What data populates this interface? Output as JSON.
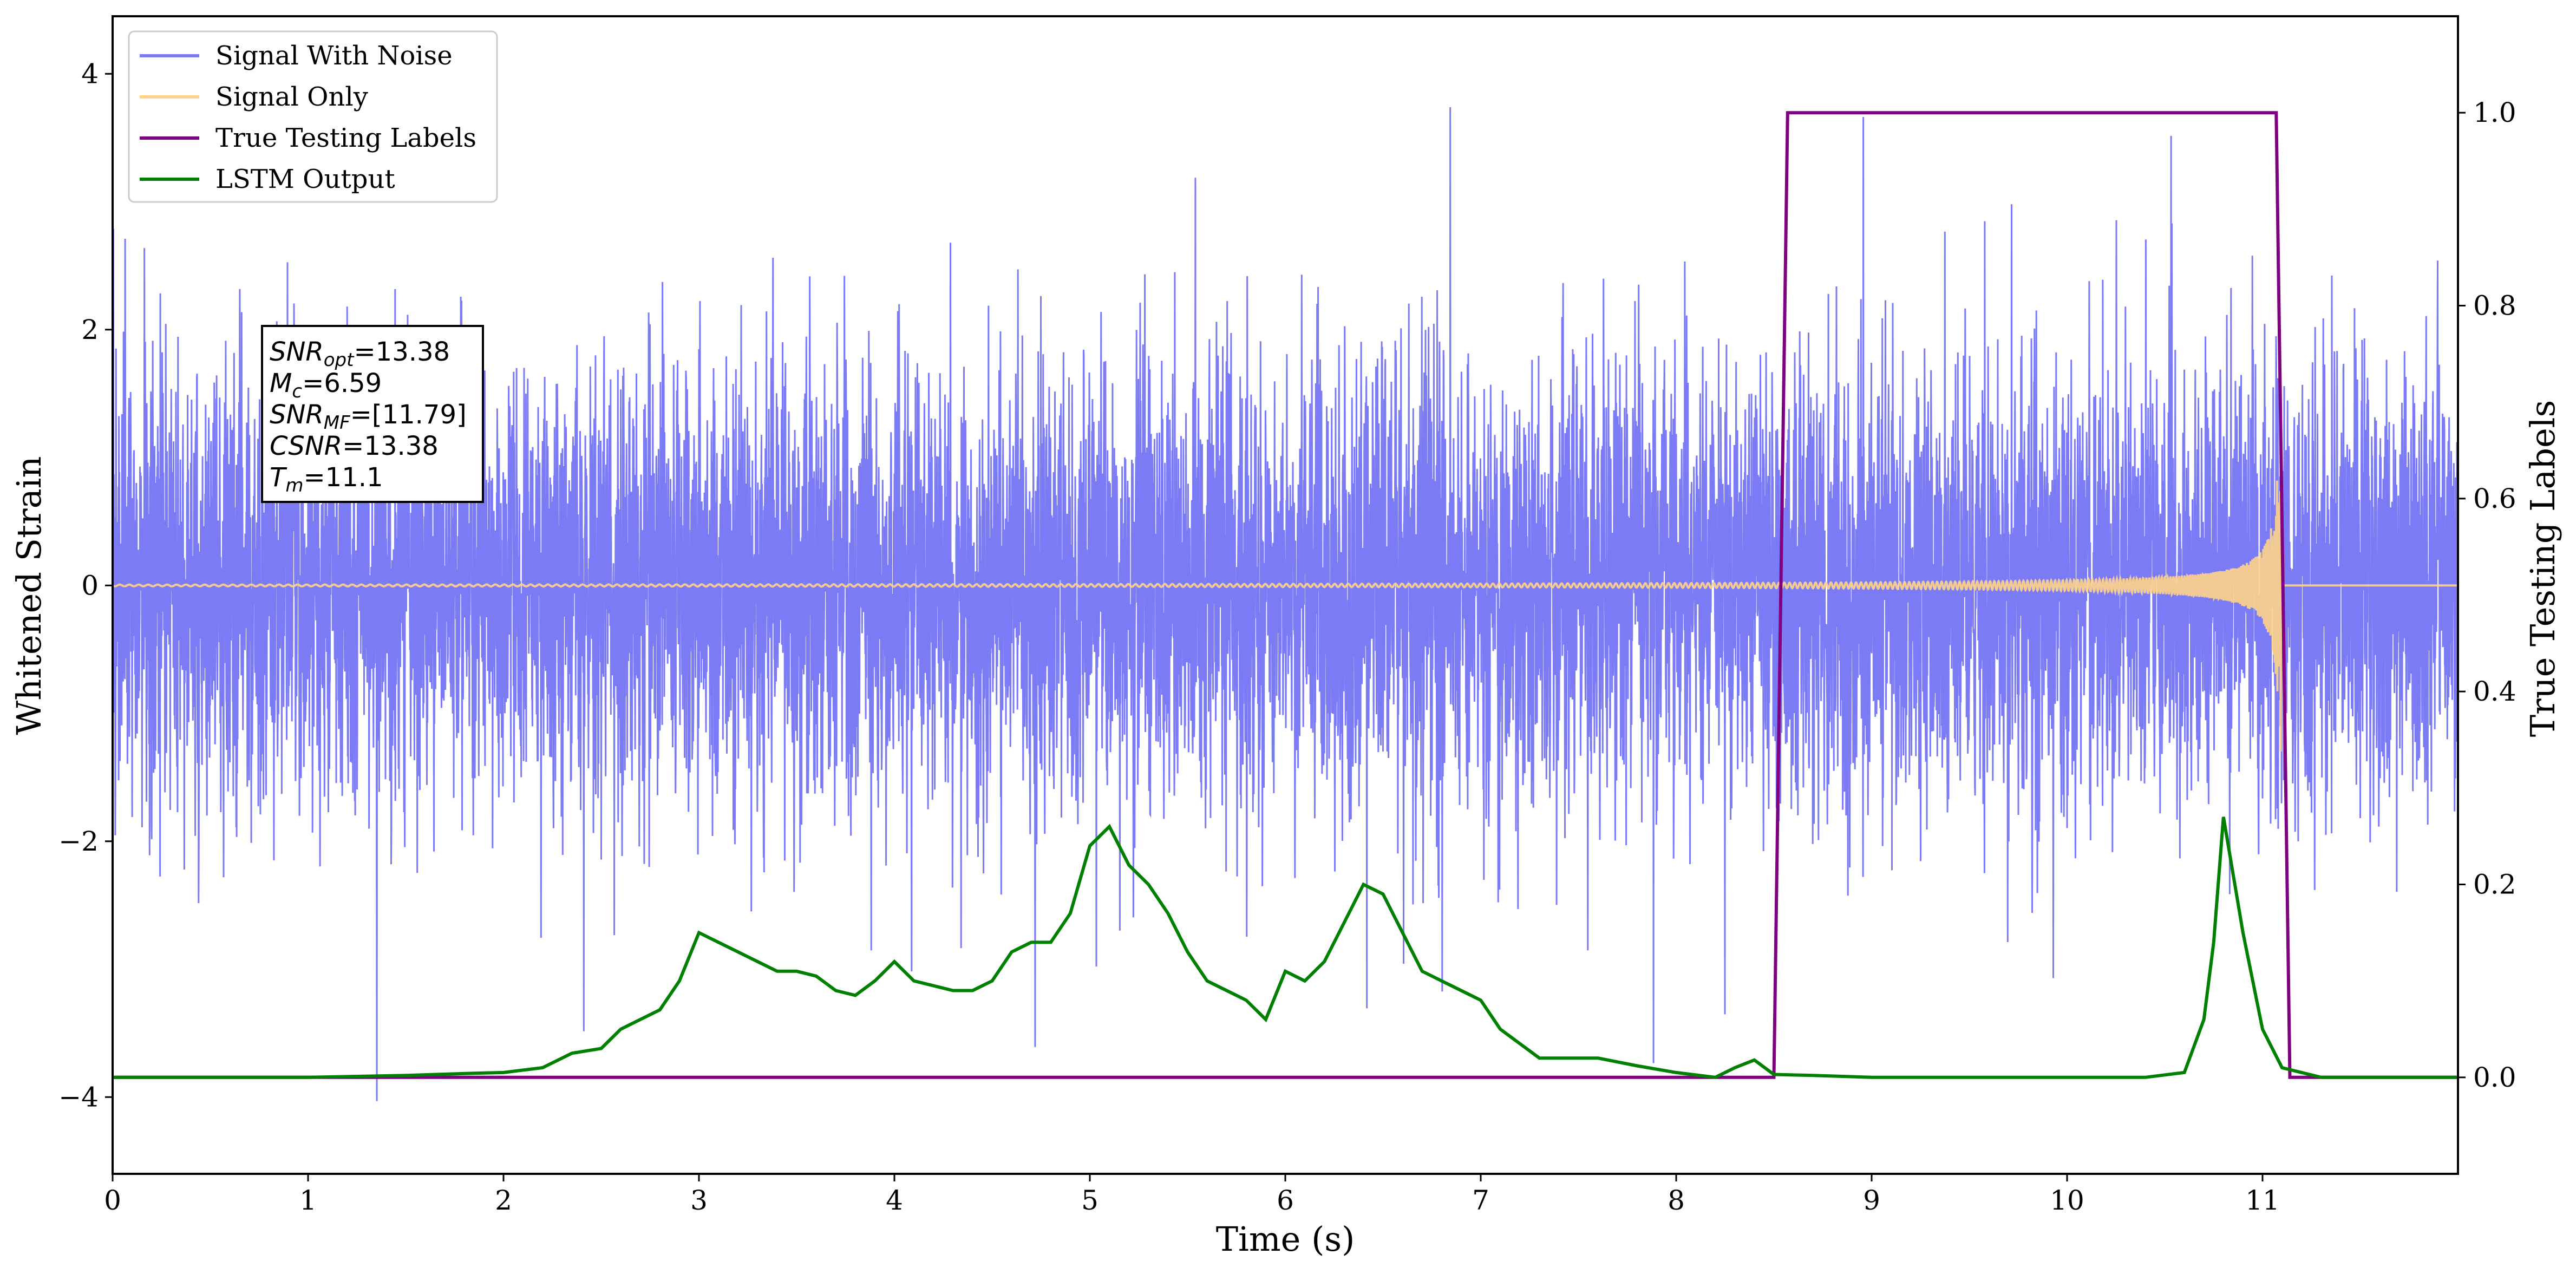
{
  "chart_data": {
    "type": "line",
    "xlabel": "Time (s)",
    "ylabel": "Whitened Strain",
    "y2label": "True Testing Labels",
    "xlim": [
      0,
      12
    ],
    "ylim": [
      -4.6,
      4.45
    ],
    "y2lim": [
      -0.1,
      1.1
    ],
    "xticks": [
      "0",
      "1",
      "2",
      "3",
      "4",
      "5",
      "6",
      "7",
      "8",
      "9",
      "10",
      "11"
    ],
    "yticks": [
      "−4",
      "−2",
      "0",
      "2",
      "4"
    ],
    "y2ticks": [
      "0.0",
      "0.2",
      "0.4",
      "0.6",
      "0.8",
      "1.0"
    ],
    "legend_position": "top-left",
    "series": [
      {
        "name": "Signal With Noise",
        "color": "#7b7bf5",
        "kind": "noise",
        "std": 0.85,
        "segment": [
          0,
          12
        ]
      },
      {
        "name": "Signal Only",
        "color": "#ffd38a",
        "kind": "chirp",
        "start": 0,
        "merger": 11.1
      },
      {
        "name": "True Testing Labels",
        "color": "#800080",
        "axis": "right",
        "x": [
          0,
          8.5,
          8.57,
          11.07,
          11.14,
          12
        ],
        "y": [
          0,
          0,
          1,
          1,
          0,
          0
        ]
      },
      {
        "name": "LSTM Output",
        "color": "#008000",
        "axis": "right",
        "x": [
          0,
          1,
          1.5,
          1.8,
          2.0,
          2.2,
          2.35,
          2.5,
          2.6,
          2.7,
          2.8,
          2.9,
          3.0,
          3.1,
          3.2,
          3.3,
          3.4,
          3.5,
          3.6,
          3.7,
          3.8,
          3.9,
          4.0,
          4.1,
          4.2,
          4.3,
          4.4,
          4.5,
          4.6,
          4.7,
          4.8,
          4.9,
          5.0,
          5.1,
          5.2,
          5.3,
          5.4,
          5.5,
          5.6,
          5.7,
          5.8,
          5.9,
          6.0,
          6.1,
          6.2,
          6.3,
          6.4,
          6.5,
          6.6,
          6.7,
          6.8,
          6.9,
          7.0,
          7.1,
          7.2,
          7.3,
          7.4,
          7.6,
          7.8,
          8.0,
          8.2,
          8.3,
          8.4,
          8.5,
          8.7,
          9.0,
          9.5,
          10.0,
          10.4,
          10.6,
          10.7,
          10.75,
          10.8,
          10.9,
          11.0,
          11.1,
          11.3,
          12
        ],
        "y": [
          0.0,
          0.0,
          0.002,
          0.004,
          0.005,
          0.01,
          0.025,
          0.03,
          0.05,
          0.06,
          0.07,
          0.1,
          0.15,
          0.14,
          0.13,
          0.12,
          0.11,
          0.11,
          0.105,
          0.09,
          0.085,
          0.1,
          0.12,
          0.1,
          0.095,
          0.09,
          0.09,
          0.1,
          0.13,
          0.14,
          0.14,
          0.17,
          0.24,
          0.26,
          0.22,
          0.2,
          0.17,
          0.13,
          0.1,
          0.09,
          0.08,
          0.06,
          0.11,
          0.1,
          0.12,
          0.16,
          0.2,
          0.19,
          0.15,
          0.11,
          0.1,
          0.09,
          0.08,
          0.05,
          0.035,
          0.02,
          0.02,
          0.02,
          0.012,
          0.005,
          0.0,
          0.01,
          0.018,
          0.003,
          0.002,
          0.0,
          0.0,
          0.0,
          0.0,
          0.005,
          0.06,
          0.14,
          0.27,
          0.15,
          0.05,
          0.01,
          0.0,
          0.0
        ]
      }
    ],
    "annotation": [
      {
        "name": "SNR",
        "sub": "opt",
        "value": "=13.38"
      },
      {
        "name": "M",
        "sub": "c",
        "value": "=6.59"
      },
      {
        "name": "SNR",
        "sub": "MF",
        "value": "=[11.79]"
      },
      {
        "name": "CSNR",
        "sub": "",
        "value": "=13.38"
      },
      {
        "name": "T",
        "sub": "m",
        "value": "=11.1"
      }
    ]
  }
}
